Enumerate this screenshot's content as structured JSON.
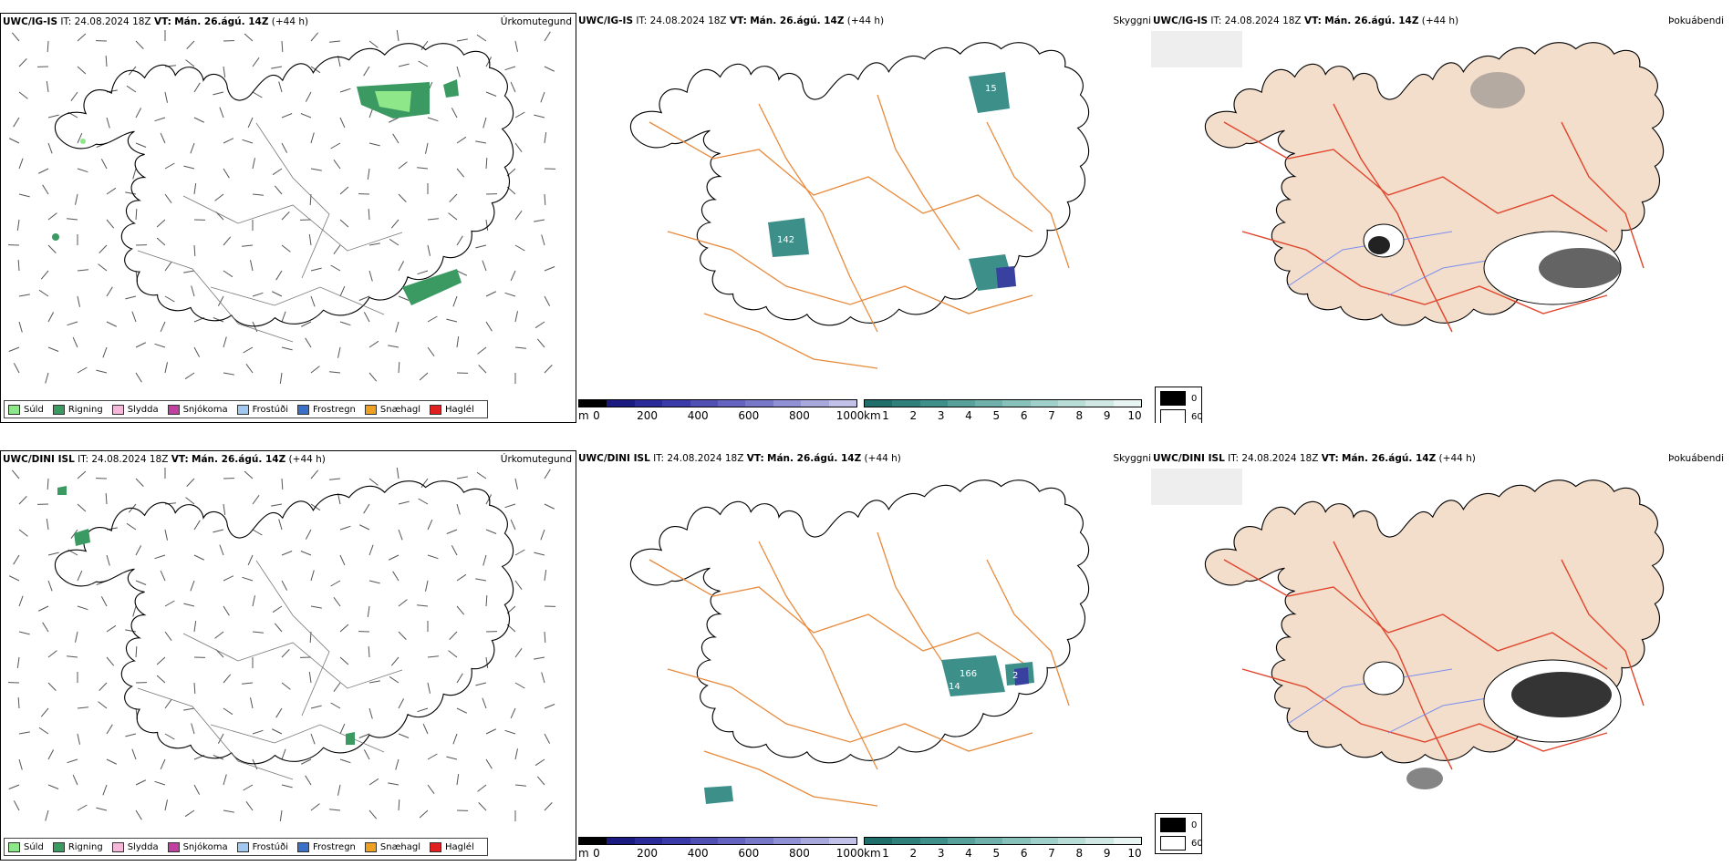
{
  "colors": {
    "land_outline": "#000000",
    "roads_orange": "#e88a3c",
    "roads_red": "#e0452b",
    "rivers": "#7a8ff0",
    "land_beige": "#f3ddcb",
    "precip_drizzle": "#8ee88a",
    "precip_rain": "#3a9a62",
    "visibility_teal": "#3d8f8a",
    "visibility_blue": "#3840a0"
  },
  "rows": [
    {
      "model": "UWC/IG-IS",
      "it_label": "IT:",
      "it_value": "24.08.2024 18Z",
      "vt_label": "VT:",
      "vt_value": "Mán. 26.ágú. 14Z",
      "lead": "(+44 h)",
      "panel1_title": "Úrkomutegund",
      "panel2_title": "Skyggni",
      "panel3_title": "Þokuábendi",
      "vis_labels": [
        "15",
        "142"
      ]
    },
    {
      "model": "UWC/DINI ISL",
      "it_label": "IT:",
      "it_value": "24.08.2024 18Z",
      "vt_label": "VT:",
      "vt_value": "Mán. 26.ágú. 14Z",
      "lead": "(+44 h)",
      "panel1_title": "Úrkomutegund",
      "panel2_title": "Skyggni",
      "panel3_title": "Þokuábendi",
      "vis_labels": [
        "166",
        "14",
        "2"
      ]
    }
  ],
  "precip_legend": [
    {
      "label": "Súld",
      "color": "#8ee88a"
    },
    {
      "label": "Rigning",
      "color": "#3a9a62"
    },
    {
      "label": "Slydda",
      "color": "#f5b8d8"
    },
    {
      "label": "Snjókoma",
      "color": "#c040a0"
    },
    {
      "label": "Frostúði",
      "color": "#a0c8f0"
    },
    {
      "label": "Frostregn",
      "color": "#3a70c8"
    },
    {
      "label": "Snæhagl",
      "color": "#f0a020"
    },
    {
      "label": "Haglél",
      "color": "#e02020"
    }
  ],
  "colorbar_m": {
    "unit": "m",
    "ticks": [
      "0",
      "200",
      "400",
      "600",
      "800",
      "1000"
    ],
    "colors": [
      "#000000",
      "#1a1a80",
      "#2a2a98",
      "#3a3aa8",
      "#5050b4",
      "#6464c0",
      "#7878c8",
      "#9090d4",
      "#a8a8dc",
      "#c0c0e8"
    ]
  },
  "colorbar_km": {
    "unit": "km",
    "ticks": [
      "1",
      "2",
      "3",
      "4",
      "5",
      "6",
      "7",
      "8",
      "9",
      "10"
    ],
    "colors": [
      "#1f6e6a",
      "#2f7f7a",
      "#3f8f8a",
      "#58a09a",
      "#70b0aa",
      "#88c0ba",
      "#a0d0ca",
      "#b8dcd6",
      "#d0e8e4",
      "#e8f4f2"
    ]
  },
  "fog_legend": [
    {
      "label": "0",
      "color": "#000000"
    },
    {
      "label": "60",
      "color": "#ffffff"
    }
  ]
}
